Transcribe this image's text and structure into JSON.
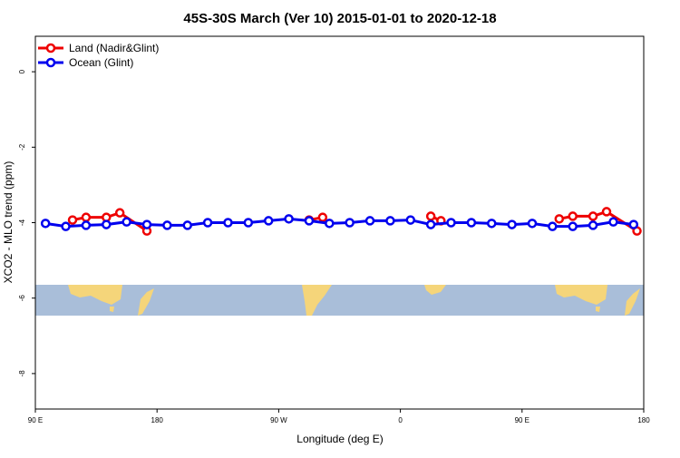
{
  "chart_data": {
    "type": "line",
    "title": "45S-30S March (Ver 10)   2015-01-01 to 2020-12-18",
    "xlabel": "Longitude (deg E)",
    "ylabel": "XCO2 - MLO trend (ppm)",
    "xlim": [
      90,
      540
    ],
    "ylim": [
      -8.94,
      0.94
    ],
    "xticks": [
      {
        "value": 90,
        "label": "90 E"
      },
      180,
      {
        "value": 270,
        "label": "90 W"
      },
      {
        "value": 360,
        "label": "0"
      },
      {
        "value": 450,
        "label": "90 E"
      },
      {
        "value": 540,
        "label": "180"
      }
    ],
    "yticks": [
      0,
      -2,
      -4,
      -6,
      -8
    ],
    "legend": "top-left",
    "series": [
      {
        "name": "Land (Nadir&Glint)",
        "color": "#ee0000",
        "x": [
          117.5,
          127.5,
          142.5,
          152.5,
          172.5,
          null,
          292.5,
          302.5,
          null,
          382.5,
          390,
          null,
          477.5,
          487.5,
          502.5,
          512.5,
          535
        ],
        "values": [
          -3.93,
          -3.86,
          -3.86,
          -3.74,
          -4.22,
          null,
          -3.93,
          -3.86,
          null,
          -3.83,
          -3.95,
          null,
          -3.9,
          -3.83,
          -3.83,
          -3.71,
          -4.22
        ]
      },
      {
        "name": "Ocean (Glint)",
        "color": "#0000ee",
        "x": [
          97.5,
          112.5,
          127.5,
          142.5,
          157.5,
          172.5,
          187.5,
          202.5,
          217.5,
          232.5,
          247.5,
          262.5,
          277.5,
          292.5,
          307.5,
          322.5,
          337.5,
          352.5,
          367.5,
          382.5,
          397.5,
          412.5,
          427.5,
          442.5,
          457.5,
          472.5,
          487.5,
          502.5,
          517.5,
          532.5
        ],
        "values": [
          -4.02,
          -4.1,
          -4.07,
          -4.05,
          -3.98,
          -4.05,
          -4.07,
          -4.07,
          -4.0,
          -4.0,
          -4.0,
          -3.95,
          -3.9,
          -3.95,
          -4.02,
          -4.0,
          -3.95,
          -3.95,
          -3.93,
          -4.05,
          -4.0,
          -4.0,
          -4.02,
          -4.05,
          -4.02,
          -4.1,
          -4.1,
          -4.07,
          -3.98,
          -4.05
        ]
      }
    ]
  }
}
